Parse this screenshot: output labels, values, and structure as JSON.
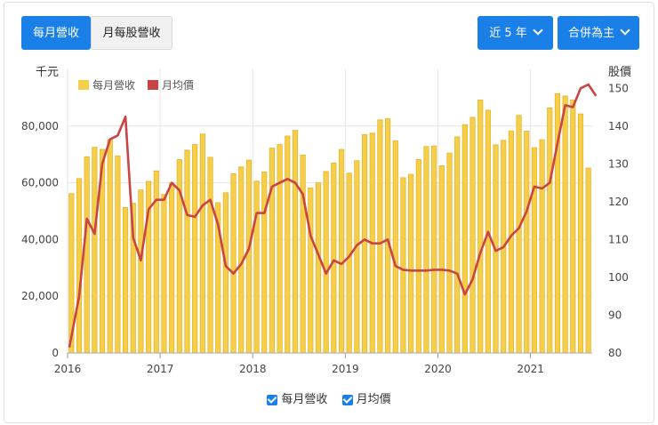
{
  "tabs": [
    {
      "label": "每月營收",
      "active": true
    },
    {
      "label": "月每股營收",
      "active": false
    }
  ],
  "range_dropdown": {
    "label": "近 5 年"
  },
  "scope_dropdown": {
    "label": "合併為主"
  },
  "legend": {
    "revenue": "每月營收",
    "price": "月均價"
  },
  "bottom_legend": {
    "revenue": "每月營收",
    "price": "月均價"
  },
  "colors": {
    "bar_fill": "#f5cf4a",
    "bar_stroke": "#e7b42a",
    "line": "#c94444",
    "accent": "#1a7fe6"
  },
  "chart_data": {
    "type": "bar",
    "left_axis_title": "千元",
    "right_axis_title": "股價",
    "ylim_left": [
      0,
      100000
    ],
    "ylim_right": [
      80,
      155
    ],
    "yticks_left": [
      "0",
      "20,000",
      "40,000",
      "60,000",
      "80,000"
    ],
    "yticks_right": [
      "80",
      "90",
      "100",
      "110",
      "120",
      "130",
      "140",
      "150"
    ],
    "x_tick_labels": [
      "2016",
      "2017",
      "2018",
      "2019",
      "2020",
      "2021"
    ],
    "start": "2016-01",
    "series": [
      {
        "name": "每月營收",
        "type": "bar",
        "axis": "left",
        "values": [
          56200,
          61500,
          69200,
          72500,
          71800,
          75300,
          69500,
          51300,
          52800,
          57500,
          60500,
          64200,
          55900,
          60000,
          68200,
          71500,
          73500,
          77200,
          69000,
          53000,
          56500,
          63200,
          65600,
          68000,
          60600,
          63800,
          72200,
          73500,
          76500,
          78500,
          69800,
          58200,
          60000,
          64000,
          67000,
          71800,
          63400,
          67800,
          77000,
          77500,
          82200,
          82600,
          74800,
          61800,
          63000,
          68200,
          72800,
          73000,
          66000,
          70500,
          76200,
          80500,
          83100,
          89200,
          85600,
          73400,
          75000,
          78300,
          83800,
          78200,
          72400,
          75200,
          86400,
          91400,
          90600,
          89200,
          84300,
          65200
        ]
      },
      {
        "name": "月均價",
        "type": "line",
        "axis": "right",
        "values": [
          81.5,
          95,
          115.5,
          111.5,
          130,
          136.5,
          137.5,
          142.5,
          110.5,
          104.5,
          118,
          120.5,
          120.5,
          125,
          123,
          116.5,
          116,
          119,
          120.5,
          114,
          103,
          101,
          103.5,
          107.5,
          117,
          117,
          124,
          125,
          126,
          125,
          122,
          111,
          106,
          101,
          104.5,
          103.5,
          105.5,
          108.5,
          110,
          109,
          109,
          110,
          103,
          102,
          101.8,
          101.8,
          101.8,
          102,
          102,
          101.8,
          101,
          95.5,
          99.5,
          106.5,
          112,
          107,
          108,
          111,
          113,
          117.5,
          124,
          123.5,
          125,
          135.5,
          145.5,
          145,
          150,
          151,
          148
        ]
      }
    ]
  }
}
